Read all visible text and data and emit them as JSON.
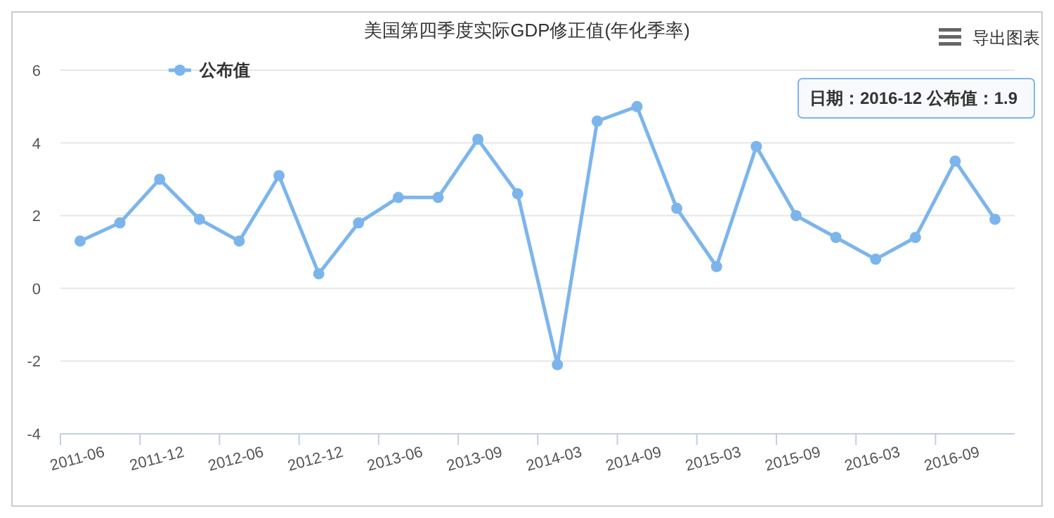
{
  "chart_data": {
    "type": "line",
    "title": "美国第四季度实际GDP修正值(年化季率)",
    "categories": [
      "2011-06",
      null,
      "2011-12",
      null,
      "2012-06",
      null,
      "2012-12",
      null,
      "2013-06",
      null,
      "2013-09",
      null,
      "2014-03",
      null,
      "2014-09",
      null,
      "2015-03",
      null,
      "2015-09",
      null,
      "2016-03",
      null,
      "2016-09",
      null
    ],
    "series": [
      {
        "name": "公布值",
        "color": "#7cb5ec",
        "values": [
          1.3,
          1.8,
          3.0,
          1.9,
          1.3,
          3.1,
          0.4,
          1.8,
          2.5,
          2.5,
          4.1,
          2.6,
          -2.1,
          4.6,
          5.0,
          2.2,
          0.6,
          3.9,
          2.0,
          1.4,
          0.8,
          1.4,
          3.5,
          1.9
        ]
      }
    ],
    "ylim": [
      -4,
      6
    ],
    "yticks": [
      -4,
      -2,
      0,
      2,
      4,
      6
    ],
    "grid": "y",
    "legend": "top left",
    "marker": "circle",
    "line_style": "solid",
    "annotations": [
      "日期：2016-12 公布值：1.9",
      "导出图表"
    ]
  }
}
